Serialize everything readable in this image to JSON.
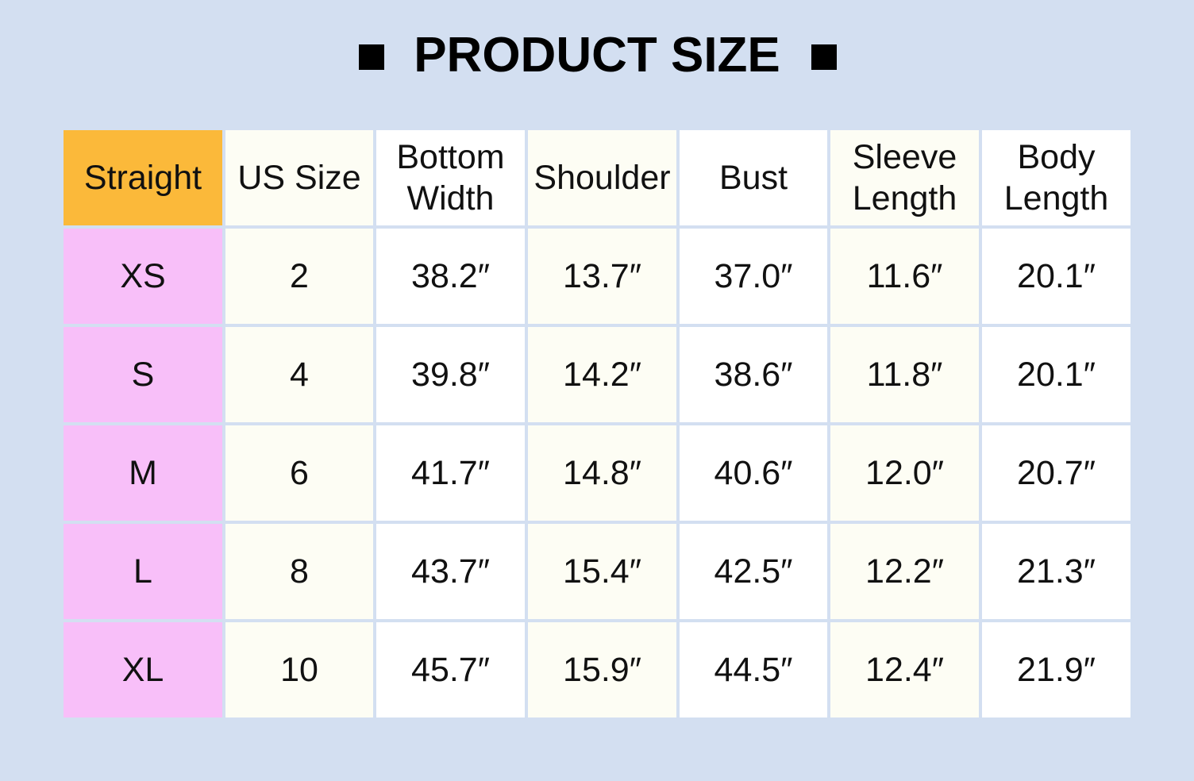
{
  "header": {
    "title": "PRODUCT SIZE"
  },
  "table": {
    "columns": [
      "Straight",
      "US Size",
      "Bottom Width",
      "Shoulder",
      "Bust",
      "Sleeve Length",
      "Body Length"
    ],
    "rows": [
      [
        "XS",
        "2",
        "38.2″",
        "13.7″",
        "37.0″",
        "11.6″",
        "20.1″"
      ],
      [
        "S",
        "4",
        "39.8″",
        "14.2″",
        "38.6″",
        "11.8″",
        "20.1″"
      ],
      [
        "M",
        "6",
        "41.7″",
        "14.8″",
        "40.6″",
        "12.0″",
        "20.7″"
      ],
      [
        "L",
        "8",
        "43.7″",
        "15.4″",
        "42.5″",
        "12.2″",
        "21.3″"
      ],
      [
        "XL",
        "10",
        "45.7″",
        "15.9″",
        "44.5″",
        "12.4″",
        "21.9″"
      ]
    ]
  }
}
